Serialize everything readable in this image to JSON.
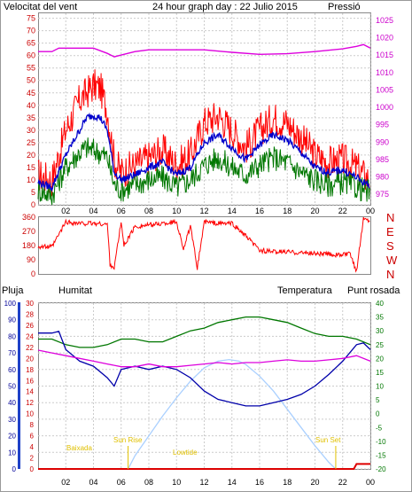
{
  "header": {
    "wind_label": "Velocitat del vent",
    "title": "24 hour graph day : 22 Julio 2015",
    "pressure_label": "Pressió"
  },
  "panel3_labels": {
    "rain": "Pluja",
    "humidity": "Humitat",
    "temperature": "Temperatura",
    "dewpoint": "Punt rosada"
  },
  "colors": {
    "wind_gust": "#ff0000",
    "wind_avg": "#0000cc",
    "wind_speed": "#007700",
    "pressure": "#dd00dd",
    "direction": "#ff0000",
    "rain": "#dd0000",
    "humidity": "#0000aa",
    "temperature": "#007700",
    "dewpoint": "#dd00dd",
    "sun": "#aad0ff",
    "annotation": "#e0c000"
  },
  "chart_data": [
    {
      "type": "line",
      "panel": "wind_pressure",
      "x_ticks": [
        "02",
        "04",
        "06",
        "08",
        "10",
        "12",
        "14",
        "16",
        "18",
        "20",
        "22",
        "00"
      ],
      "x_hours": [
        2,
        4,
        6,
        8,
        10,
        12,
        14,
        16,
        18,
        20,
        22,
        24
      ],
      "left_axis_ticks": [
        0,
        5,
        10,
        15,
        20,
        25,
        30,
        35,
        40,
        45,
        50,
        55,
        60,
        65,
        70,
        75
      ],
      "right_axis_ticks": [
        975,
        980,
        985,
        990,
        995,
        1000,
        1005,
        1010,
        1015,
        1020,
        1025
      ],
      "ylim_left": [
        0,
        77
      ],
      "ylim_right": [
        972,
        1027
      ],
      "grid": true,
      "series": [
        {
          "key": "wind_gust",
          "axis": "left",
          "x": [
            0,
            1,
            2,
            3,
            3.5,
            4,
            4.5,
            5,
            5.5,
            6,
            7,
            8,
            9,
            10,
            11,
            12,
            13,
            14,
            15,
            16,
            17,
            18,
            19,
            20,
            21,
            22,
            23,
            23.5,
            24
          ],
          "values": [
            12,
            10,
            30,
            42,
            45,
            48,
            47,
            38,
            18,
            13,
            16,
            19,
            22,
            16,
            20,
            33,
            36,
            30,
            23,
            30,
            35,
            33,
            27,
            20,
            17,
            18,
            15,
            12,
            10
          ]
        },
        {
          "key": "wind_avg",
          "axis": "left",
          "x": [
            0,
            1,
            2,
            3,
            3.5,
            4,
            4.5,
            5,
            5.5,
            6,
            7,
            8,
            9,
            10,
            11,
            12,
            13,
            14,
            15,
            16,
            17,
            18,
            19,
            20,
            21,
            22,
            23,
            23.5,
            24
          ],
          "values": [
            9,
            7,
            20,
            30,
            35,
            36,
            35,
            30,
            13,
            10,
            12,
            15,
            17,
            12,
            15,
            25,
            28,
            23,
            18,
            24,
            28,
            26,
            21,
            15,
            13,
            14,
            11,
            9,
            8
          ]
        },
        {
          "key": "wind_speed",
          "axis": "left",
          "x": [
            0,
            1,
            2,
            3,
            3.5,
            4,
            4.5,
            5,
            5.5,
            6,
            7,
            8,
            9,
            10,
            11,
            12,
            13,
            14,
            15,
            16,
            17,
            18,
            19,
            20,
            21,
            22,
            23,
            23.5,
            24
          ],
          "values": [
            6,
            4,
            15,
            21,
            23,
            22,
            21,
            19,
            8,
            6,
            8,
            10,
            11,
            7,
            10,
            16,
            19,
            15,
            12,
            16,
            19,
            17,
            13,
            10,
            8,
            9,
            7,
            6,
            5
          ]
        },
        {
          "key": "pressure",
          "axis": "right",
          "x": [
            0,
            1,
            1.5,
            2,
            3,
            4,
            5,
            5.5,
            6,
            7,
            8,
            10,
            12,
            14,
            16,
            18,
            20,
            22,
            23,
            23.5,
            24
          ],
          "values": [
            1016,
            1016,
            1017,
            1017,
            1017,
            1017,
            1015.5,
            1014.5,
            1015,
            1016,
            1016.5,
            1016.5,
            1016.5,
            1015.8,
            1015.2,
            1015.4,
            1016,
            1016.8,
            1017.5,
            1018,
            1017
          ]
        }
      ]
    },
    {
      "type": "scatter",
      "panel": "wind_direction",
      "y_ticks": [
        0,
        90,
        180,
        270,
        360
      ],
      "compass_labels": [
        "N",
        "W",
        "S",
        "E",
        "N"
      ],
      "ylim": [
        0,
        360
      ],
      "x": [
        0,
        1,
        2,
        3,
        4,
        5,
        5.2,
        5.5,
        6,
        6.2,
        7,
        8,
        9,
        10,
        10.5,
        11,
        11.5,
        12,
        13,
        14,
        15,
        16,
        17,
        18,
        19,
        20,
        21,
        22,
        22.5,
        23,
        23.5,
        24
      ],
      "values": [
        175,
        170,
        330,
        320,
        320,
        315,
        60,
        40,
        330,
        180,
        300,
        310,
        320,
        330,
        160,
        300,
        40,
        330,
        320,
        320,
        240,
        150,
        140,
        140,
        135,
        130,
        125,
        120,
        130,
        20,
        350,
        340
      ]
    },
    {
      "type": "line",
      "panel": "humidity_temperature",
      "left_axis_ticks": [
        0,
        10,
        20,
        30,
        40,
        50,
        60,
        70,
        80,
        90,
        100
      ],
      "rain_axis_ticks": [
        0,
        2,
        4,
        6,
        8,
        10,
        12,
        14,
        16,
        18,
        20,
        22,
        24,
        26,
        28,
        30
      ],
      "right_axis_ticks": [
        -20,
        -15,
        -10,
        -5,
        0,
        5,
        10,
        15,
        20,
        25,
        30,
        35,
        40
      ],
      "ylim_left": [
        0,
        100
      ],
      "ylim_right": [
        -20,
        40
      ],
      "grid": true,
      "annotations": [
        "Baixada",
        "Sun Rise",
        "Lowtide",
        "Sun Set"
      ],
      "series": [
        {
          "key": "humidity",
          "axis": "left",
          "x": [
            0,
            1,
            1.5,
            2,
            3,
            4,
            5,
            5.5,
            6,
            7,
            8,
            9,
            10,
            11,
            12,
            13,
            14,
            15,
            16,
            17,
            18,
            19,
            20,
            21,
            22,
            23,
            23.5,
            24
          ],
          "values": [
            82,
            82,
            83,
            72,
            65,
            62,
            55,
            50,
            60,
            62,
            60,
            62,
            60,
            55,
            47,
            42,
            40,
            38,
            38,
            40,
            42,
            45,
            50,
            57,
            65,
            75,
            76,
            72
          ]
        },
        {
          "key": "temperature",
          "axis": "right",
          "x": [
            0,
            1,
            2,
            3,
            4,
            5,
            6,
            7,
            8,
            9,
            10,
            11,
            12,
            13,
            14,
            15,
            16,
            17,
            18,
            19,
            20,
            21,
            22,
            23,
            24
          ],
          "values": [
            27,
            27,
            25,
            24,
            24,
            25,
            27,
            27,
            26,
            26,
            28,
            30,
            31,
            33,
            34,
            35,
            35,
            34,
            33,
            31,
            29,
            28,
            28,
            27,
            25
          ]
        },
        {
          "key": "dewpoint",
          "axis": "right",
          "x": [
            0,
            1,
            2,
            3,
            4,
            5,
            6,
            7,
            8,
            9,
            10,
            11,
            12,
            13,
            14,
            15,
            16,
            17,
            18,
            19,
            20,
            21,
            22,
            23,
            24
          ],
          "values": [
            23,
            22,
            21,
            20,
            19,
            18,
            17,
            17,
            18,
            17,
            17,
            17.5,
            18,
            18.5,
            18,
            18.5,
            18.5,
            19,
            19.5,
            19,
            19,
            19.5,
            20,
            21,
            19
          ]
        },
        {
          "key": "sun",
          "axis": "left",
          "x": [
            6.5,
            7,
            8,
            9,
            10,
            11,
            12,
            13,
            13.8,
            14.5,
            15,
            16,
            17,
            18,
            19,
            20,
            21,
            21.5
          ],
          "values": [
            0,
            8,
            20,
            32,
            43,
            53,
            61,
            65,
            66,
            65,
            63,
            56,
            47,
            36,
            25,
            14,
            4,
            0
          ]
        },
        {
          "key": "rain",
          "axis": "left",
          "x": [
            0,
            22.8,
            23,
            24
          ],
          "values": [
            0,
            0,
            3,
            3
          ]
        }
      ]
    }
  ]
}
